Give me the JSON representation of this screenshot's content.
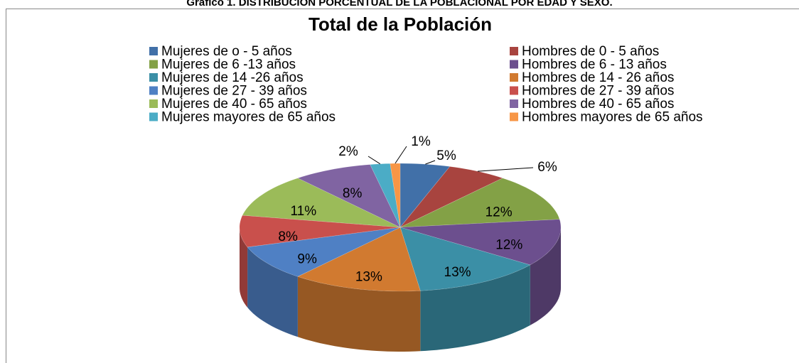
{
  "chart_data": {
    "type": "pie",
    "caption": "Gráfico 1. DISTRIBUCIÓN PORCENTUAL DE LA POBLACIONAL POR EDAD Y SEXO.",
    "title": "Total de la Población",
    "categories": [
      "Mujeres de o - 5 años",
      "Hombres de 0 - 5 años",
      "Mujeres de 6 -13 años",
      "Hombres de 6 - 13 años",
      "Mujeres de 14 -26 años",
      "Hombres de 14 - 26 años",
      "Mujeres de 27 - 39 años",
      "Hombres de 27 - 39 años",
      "Mujeres de 40 - 65 años",
      "Hombres de 40 - 65 años",
      "Mujeres mayores de 65 años",
      "Hombres mayores de 65 años"
    ],
    "values": [
      5,
      6,
      12,
      12,
      13,
      13,
      9,
      8,
      11,
      8,
      2,
      1
    ],
    "value_labels": [
      "5%",
      "6%",
      "12%",
      "12%",
      "13%",
      "13%",
      "9%",
      "8%",
      "11%",
      "8%",
      "2%",
      "1%"
    ],
    "colors": [
      "#4170a8",
      "#a8443f",
      "#83a146",
      "#6c4f8e",
      "#3b8fa6",
      "#d17a30",
      "#4f80c4",
      "#c9504c",
      "#9bbb59",
      "#8064a2",
      "#4bacc6",
      "#f79646"
    ],
    "legend": "top"
  }
}
